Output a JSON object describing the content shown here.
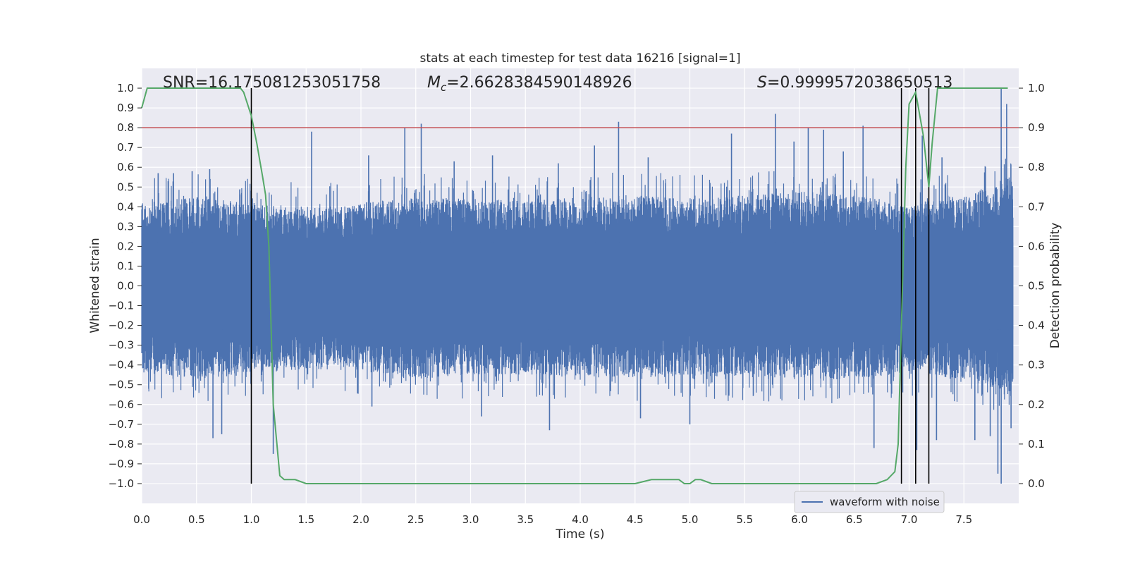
{
  "chart_data": {
    "type": "line",
    "title": "stats at each timestep for test data 16216 [signal=1]",
    "xlabel": "Time (s)",
    "ylabel": "Whitened strain",
    "y2label": "Detection probability",
    "xlim": [
      0.0,
      8.0
    ],
    "ylim": [
      -1.1,
      1.1
    ],
    "y2lim": [
      -0.05,
      1.05
    ],
    "xticks": [
      "0.0",
      "0.5",
      "1.0",
      "1.5",
      "2.0",
      "2.5",
      "3.0",
      "3.5",
      "4.0",
      "4.5",
      "5.0",
      "5.5",
      "6.0",
      "6.5",
      "7.0",
      "7.5"
    ],
    "yticks": [
      "1.0",
      "0.9",
      "0.8",
      "0.7",
      "0.6",
      "0.5",
      "0.4",
      "0.3",
      "0.2",
      "0.1",
      "0.0",
      "−0.1",
      "−0.2",
      "−0.3",
      "−0.4",
      "−0.5",
      "−0.6",
      "−0.7",
      "−0.8",
      "−0.9",
      "−1.0"
    ],
    "y2ticks": [
      "1.0",
      "0.9",
      "0.8",
      "0.7",
      "0.6",
      "0.5",
      "0.4",
      "0.3",
      "0.2",
      "0.1",
      "0.0"
    ],
    "grid": true,
    "legend_placement": "lower-right",
    "annotations": {
      "snr": "SNR=16.175081253051758",
      "mc_symbol": "M",
      "mc_sub": "c",
      "mc_value": "=2.6628384590148926",
      "s_symbol": "S",
      "s_value": "=0.9999572038650513"
    },
    "threshold": {
      "axis": "right",
      "value": 0.9,
      "color": "#c44e52"
    },
    "vlines": [
      1.0,
      6.93,
      7.06,
      7.18
    ],
    "series": [
      {
        "name": "waveform with noise",
        "axis": "left",
        "color": "#4c72b0",
        "kind": "noise-envelope",
        "envelope": {
          "x": [
            0.0,
            0.5,
            1.0,
            1.5,
            2.0,
            2.5,
            3.0,
            3.5,
            4.0,
            4.5,
            5.0,
            5.5,
            6.0,
            6.5,
            7.0,
            7.5,
            7.9
          ],
          "upper": [
            0.42,
            0.45,
            0.42,
            0.4,
            0.42,
            0.45,
            0.44,
            0.43,
            0.45,
            0.46,
            0.44,
            0.46,
            0.48,
            0.46,
            0.42,
            0.45,
            0.55
          ],
          "lower": [
            -0.44,
            -0.47,
            -0.45,
            -0.42,
            -0.43,
            -0.47,
            -0.45,
            -0.45,
            -0.46,
            -0.47,
            -0.45,
            -0.47,
            -0.48,
            -0.47,
            -0.45,
            -0.47,
            -0.55
          ]
        },
        "peaks": [
          {
            "x": 0.15,
            "y": 0.57
          },
          {
            "x": 0.29,
            "y": 0.57
          },
          {
            "x": 0.46,
            "y": 0.58
          },
          {
            "x": 0.62,
            "y": 0.59
          },
          {
            "x": 1.55,
            "y": 0.78
          },
          {
            "x": 2.07,
            "y": 0.66
          },
          {
            "x": 2.4,
            "y": 0.8
          },
          {
            "x": 2.55,
            "y": 0.82
          },
          {
            "x": 2.85,
            "y": 0.63
          },
          {
            "x": 3.2,
            "y": 0.66
          },
          {
            "x": 3.8,
            "y": 0.62
          },
          {
            "x": 4.13,
            "y": 0.71
          },
          {
            "x": 4.35,
            "y": 0.83
          },
          {
            "x": 4.62,
            "y": 0.65
          },
          {
            "x": 5.38,
            "y": 0.77
          },
          {
            "x": 5.78,
            "y": 0.87
          },
          {
            "x": 5.95,
            "y": 0.73
          },
          {
            "x": 6.08,
            "y": 0.8
          },
          {
            "x": 6.22,
            "y": 0.79
          },
          {
            "x": 6.4,
            "y": 0.68
          },
          {
            "x": 6.58,
            "y": 0.81
          },
          {
            "x": 7.12,
            "y": 0.76
          },
          {
            "x": 7.3,
            "y": 0.65
          },
          {
            "x": 7.84,
            "y": 1.0
          },
          {
            "x": 7.89,
            "y": 0.92
          },
          {
            "x": 0.65,
            "y": -0.77
          },
          {
            "x": 0.73,
            "y": -0.75
          },
          {
            "x": 1.2,
            "y": -0.85
          },
          {
            "x": 2.1,
            "y": -0.61
          },
          {
            "x": 3.1,
            "y": -0.66
          },
          {
            "x": 3.72,
            "y": -0.73
          },
          {
            "x": 4.55,
            "y": -0.67
          },
          {
            "x": 5.0,
            "y": -0.7
          },
          {
            "x": 6.68,
            "y": -0.82
          },
          {
            "x": 7.07,
            "y": -0.83
          },
          {
            "x": 7.25,
            "y": -0.78
          },
          {
            "x": 7.6,
            "y": -0.78
          },
          {
            "x": 7.74,
            "y": -0.76
          },
          {
            "x": 7.81,
            "y": -0.95
          },
          {
            "x": 7.84,
            "y": -1.0
          },
          {
            "x": 7.93,
            "y": -0.72
          }
        ]
      },
      {
        "name": "",
        "axis": "right",
        "color": "#55a868",
        "kind": "line",
        "x": [
          0.0,
          0.05,
          0.9,
          0.93,
          1.0,
          1.05,
          1.1,
          1.13,
          1.16,
          1.2,
          1.26,
          1.3,
          1.4,
          1.5,
          1.7,
          2.0,
          2.5,
          3.0,
          3.5,
          4.0,
          4.2,
          4.5,
          4.65,
          4.75,
          4.85,
          4.9,
          4.95,
          5.0,
          5.05,
          5.1,
          5.2,
          5.5,
          6.0,
          6.5,
          6.7,
          6.8,
          6.87,
          6.9,
          6.93,
          6.97,
          7.0,
          7.06,
          7.13,
          7.18,
          7.21,
          7.26,
          7.3,
          7.5,
          7.9
        ],
        "y": [
          0.95,
          1.0,
          1.0,
          0.99,
          0.93,
          0.86,
          0.78,
          0.73,
          0.6,
          0.2,
          0.02,
          0.01,
          0.01,
          0.0,
          0.0,
          0.0,
          0.0,
          0.0,
          0.0,
          0.0,
          0.0,
          0.0,
          0.01,
          0.01,
          0.01,
          0.01,
          0.0,
          0.0,
          0.01,
          0.01,
          0.0,
          0.0,
          0.0,
          0.0,
          0.0,
          0.01,
          0.03,
          0.1,
          0.4,
          0.8,
          0.96,
          0.99,
          0.88,
          0.75,
          0.86,
          1.0,
          1.0,
          1.0,
          1.0
        ]
      }
    ]
  }
}
